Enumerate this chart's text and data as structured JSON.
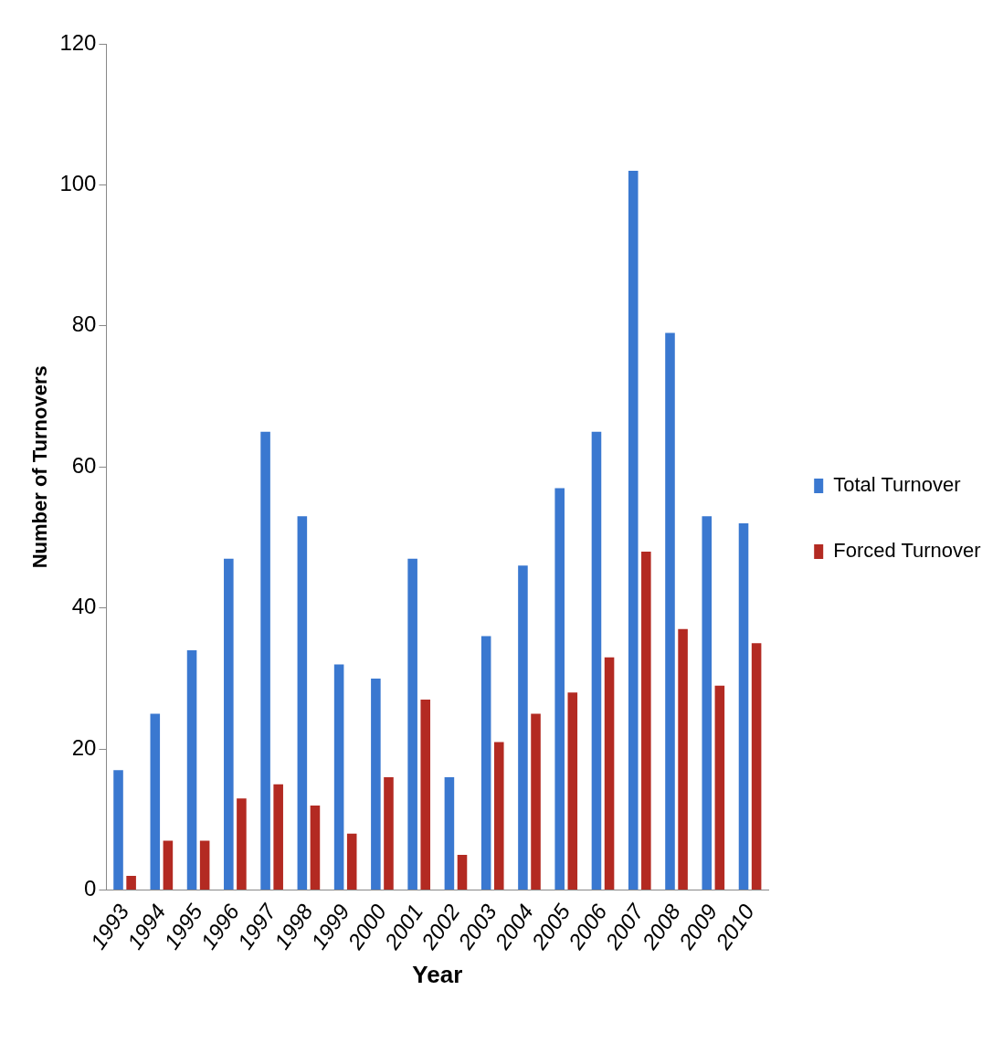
{
  "chart_data": {
    "type": "bar",
    "xlabel": "Year",
    "ylabel": "Number of Turnovers",
    "categories": [
      "1993",
      "1994",
      "1995",
      "1996",
      "1997",
      "1998",
      "1999",
      "2000",
      "2001",
      "2002",
      "2003",
      "2004",
      "2005",
      "2006",
      "2007",
      "2008",
      "2009",
      "2010"
    ],
    "series": [
      {
        "name": "Total Turnover",
        "color": "#3a78d0",
        "values": [
          17,
          25,
          34,
          47,
          65,
          53,
          32,
          30,
          47,
          16,
          36,
          46,
          57,
          65,
          102,
          79,
          53,
          52
        ]
      },
      {
        "name": "Forced Turnover",
        "color": "#b32a22",
        "values": [
          2,
          7,
          7,
          13,
          15,
          12,
          8,
          16,
          27,
          5,
          21,
          25,
          28,
          33,
          48,
          37,
          29,
          35
        ]
      }
    ],
    "ylim": [
      0,
      120
    ],
    "yticks": [
      0,
      20,
      40,
      60,
      80,
      100,
      120
    ],
    "grid": false,
    "legend": "right"
  }
}
